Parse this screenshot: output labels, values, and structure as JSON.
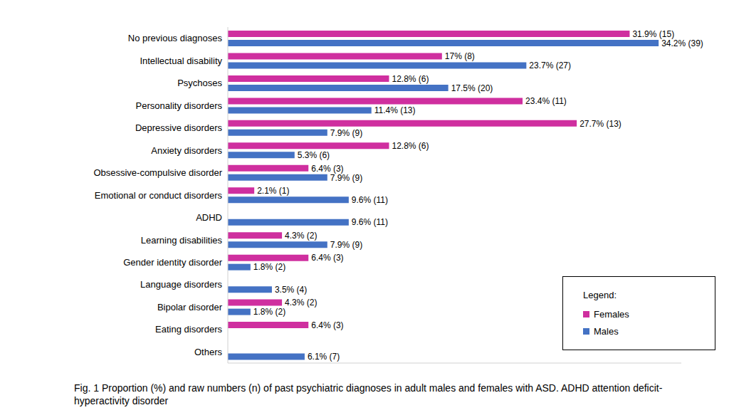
{
  "chart_data": {
    "type": "bar",
    "orientation": "horizontal",
    "caption": "Fig. 1 Proportion (%) and raw numbers (n) of past psychiatric diagnoses in adult males and females with ASD. ADHD attention deficit-hyperactivity disorder",
    "categories": [
      "No previous diagnoses",
      "Intellectual disability",
      "Psychoses",
      "Personality disorders",
      "Depressive disorders",
      "Anxiety disorders",
      "Obsessive-compulsive disorder",
      "Emotional or conduct disorders",
      "ADHD",
      "Learning disabilities",
      "Gender identity disorder",
      "Language disorders",
      "Bipolar disorder",
      "Eating disorders",
      "Others"
    ],
    "series": [
      {
        "name": "Females",
        "color": "#cf2f9f",
        "values": [
          31.9,
          17,
          12.8,
          23.4,
          27.7,
          12.8,
          6.4,
          2.1,
          0,
          4.3,
          6.4,
          0,
          4.3,
          6.4,
          0
        ],
        "value_labels": [
          "31.9% (15)",
          "17% (8)",
          "12.8% (6)",
          "23.4% (11)",
          "27.7% (13)",
          "12.8% (6)",
          "6.4% (3)",
          "2.1% (1)",
          "0",
          "4.3% (2)",
          "6.4% (3)",
          "0",
          "4.3% (2)",
          "6.4% (3)",
          "0"
        ]
      },
      {
        "name": "Males",
        "color": "#4472c4",
        "values": [
          34.2,
          23.7,
          17.5,
          11.4,
          7.9,
          5.3,
          7.9,
          9.6,
          9.6,
          7.9,
          1.8,
          3.5,
          1.8,
          0,
          6.1
        ],
        "value_labels": [
          "34.2% (39)",
          "23.7% (27)",
          "17.5% (20)",
          "11.4% (13)",
          "7.9% (9)",
          "5.3% (6)",
          "7.9% (9)",
          "9.6% (11)",
          "9.6% (11)",
          "7.9% (9)",
          "1.8% (2)",
          "3.5% (4)",
          "1.8% (2)",
          "0",
          "6.1% (7)"
        ]
      }
    ],
    "xlim": [
      0,
      36
    ],
    "xticks": [],
    "tick_labels": "y",
    "grid": false,
    "data_labels": true,
    "legend": "lower right",
    "legend_title": "Legend:"
  }
}
